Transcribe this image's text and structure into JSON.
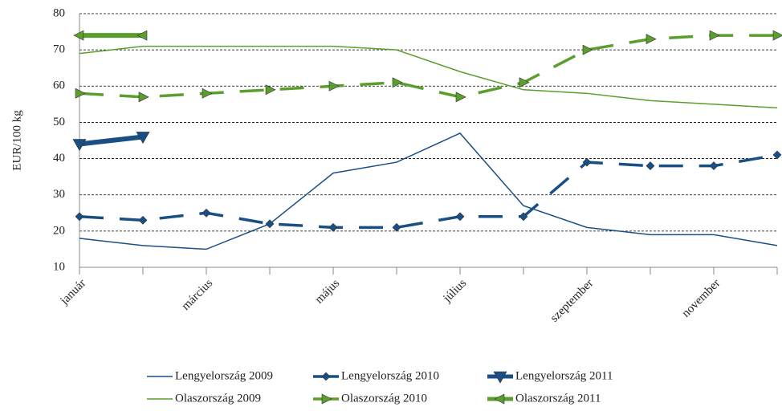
{
  "chart_data": {
    "type": "line",
    "y_label": "EUR/100 kg",
    "categories": [
      "január",
      null,
      "március",
      null,
      "május",
      null,
      "július",
      null,
      "szeptember",
      null,
      "november",
      null
    ],
    "ylim": [
      10,
      80
    ],
    "yticks": [
      10,
      20,
      30,
      40,
      50,
      60,
      70,
      80
    ],
    "grid": true,
    "legend": "bottom",
    "series": [
      {
        "name": "Lengyelország 2009",
        "color": "#1a4f86",
        "line_style": "thin",
        "marker": "none",
        "values": [
          18,
          16,
          15,
          22,
          36,
          39,
          47,
          27,
          21,
          19,
          19,
          16
        ]
      },
      {
        "name": "Lengyelország 2010",
        "color": "#1a4f86",
        "line_style": "dashed",
        "marker": "diamond",
        "values": [
          24,
          23,
          25,
          22,
          21,
          21,
          24,
          24,
          39,
          38,
          38,
          41
        ]
      },
      {
        "name": "Lengyelország 2011",
        "color": "#1a4f86",
        "line_style": "thick",
        "marker": "triangle-down",
        "values": [
          44,
          46,
          null,
          null,
          null,
          null,
          null,
          null,
          null,
          null,
          null,
          null
        ]
      },
      {
        "name": "Olaszország 2009",
        "color": "#5b9e2e",
        "line_style": "thin",
        "marker": "none",
        "values": [
          69,
          71,
          71,
          71,
          71,
          70,
          64,
          59,
          58,
          56,
          55,
          54
        ]
      },
      {
        "name": "Olaszország 2010",
        "color": "#5b9e2e",
        "line_style": "dashed",
        "marker": "triangle-right",
        "values": [
          58,
          57,
          58,
          59,
          60,
          61,
          57,
          61,
          70,
          73,
          74,
          74
        ]
      },
      {
        "name": "Olaszország 2011",
        "color": "#5b9e2e",
        "line_style": "thick",
        "marker": "triangle-left",
        "values": [
          74,
          74,
          null,
          null,
          null,
          null,
          null,
          null,
          null,
          null,
          null,
          null
        ]
      }
    ]
  }
}
